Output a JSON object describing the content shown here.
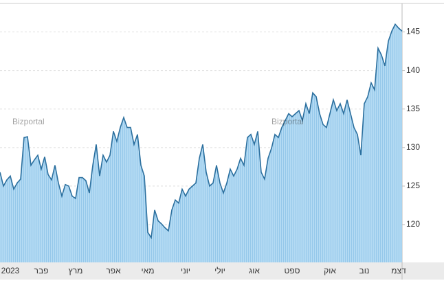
{
  "chart_data": {
    "type": "area",
    "watermark": "Bizportal",
    "categories": [
      null,
      null,
      null,
      "2023",
      null,
      null,
      null,
      null,
      null,
      null,
      null,
      null,
      "פבר",
      null,
      null,
      null,
      null,
      null,
      null,
      null,
      null,
      null,
      "מרץ",
      null,
      null,
      null,
      null,
      null,
      null,
      null,
      null,
      null,
      null,
      "אפר",
      null,
      null,
      null,
      null,
      null,
      null,
      null,
      null,
      null,
      "מאי",
      null,
      null,
      null,
      null,
      null,
      null,
      null,
      null,
      null,
      null,
      "יוני",
      null,
      null,
      null,
      null,
      null,
      null,
      null,
      null,
      null,
      "יולי",
      null,
      null,
      null,
      null,
      null,
      null,
      null,
      null,
      null,
      "אוג",
      null,
      null,
      null,
      null,
      null,
      null,
      null,
      null,
      null,
      null,
      "ספט",
      null,
      null,
      null,
      null,
      null,
      null,
      null,
      null,
      null,
      null,
      "אוק",
      null,
      null,
      null,
      null,
      null,
      null,
      null,
      null,
      null,
      "נוב",
      null,
      null,
      null,
      null,
      null,
      null,
      null,
      null,
      null,
      "דצמ",
      null
    ],
    "series": [
      {
        "color": "#2b6f9e",
        "fill": "#a9d3ef",
        "values": [
          126.8,
          125.0,
          125.8,
          126.3,
          124.6,
          125.4,
          125.9,
          131.3,
          131.4,
          127.7,
          128.4,
          129.0,
          127.2,
          128.8,
          126.5,
          125.8,
          127.7,
          125.4,
          123.7,
          125.2,
          125.0,
          123.7,
          123.4,
          126.1,
          126.1,
          125.7,
          124.1,
          127.7,
          130.4,
          126.3,
          129.0,
          128.1,
          129.0,
          132.1,
          130.8,
          132.6,
          133.9,
          132.6,
          132.6,
          130.4,
          131.7,
          127.7,
          126.3,
          119.0,
          118.3,
          121.9,
          120.5,
          120.1,
          119.6,
          119.2,
          121.9,
          123.2,
          122.8,
          124.6,
          123.7,
          124.6,
          125.0,
          125.4,
          128.6,
          130.4,
          126.8,
          125.0,
          125.4,
          127.7,
          125.4,
          124.1,
          125.4,
          127.2,
          126.3,
          127.2,
          128.6,
          127.7,
          131.3,
          131.7,
          130.4,
          132.1,
          126.8,
          125.9,
          128.6,
          129.9,
          131.7,
          131.3,
          132.6,
          133.5,
          134.4,
          134.0,
          134.4,
          134.8,
          133.5,
          135.7,
          134.4,
          137.1,
          136.6,
          134.4,
          133.0,
          132.6,
          134.4,
          136.2,
          134.8,
          135.7,
          134.4,
          136.2,
          134.4,
          132.6,
          131.7,
          129.0,
          135.7,
          136.6,
          138.4,
          137.5,
          142.9,
          142.0,
          140.6,
          143.8,
          145.1,
          146.0,
          145.5,
          145.1
        ]
      }
    ],
    "ylim": [
      115.1,
      148.7
    ],
    "yticks": [
      120,
      125,
      130,
      135,
      140,
      145
    ],
    "grid": true
  }
}
